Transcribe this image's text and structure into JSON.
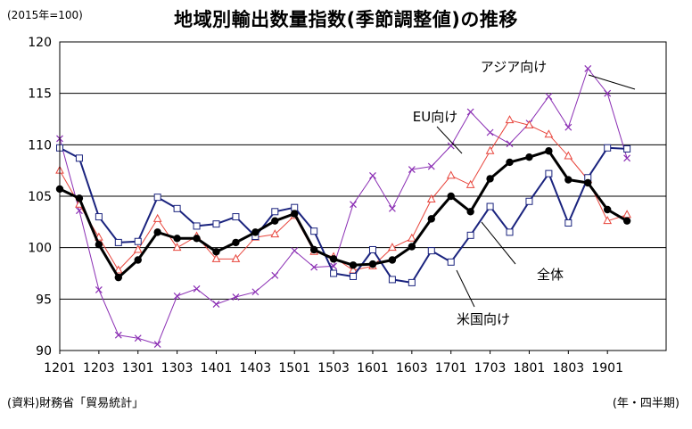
{
  "header": {
    "unit_label": "(2015年=100)",
    "title": "地域別輸出数量指数(季節調整値)の推移"
  },
  "footer": {
    "source": "(資料)財務省「貿易統計」",
    "period_note": "(年・四半期)"
  },
  "chart_data": {
    "type": "line",
    "title": "地域別輸出数量指数(季節調整値)の推移",
    "ylim": [
      90,
      120
    ],
    "yticks": [
      90,
      95,
      100,
      105,
      110,
      115,
      120
    ],
    "grid": "horizontal",
    "x": [
      "2012Q1",
      "2012Q2",
      "2012Q3",
      "2012Q4",
      "2013Q1",
      "2013Q2",
      "2013Q3",
      "2013Q4",
      "2014Q1",
      "2014Q2",
      "2014Q3",
      "2014Q4",
      "2015Q1",
      "2015Q2",
      "2015Q3",
      "2015Q4",
      "2016Q1",
      "2016Q2",
      "2016Q3",
      "2016Q4",
      "2017Q1",
      "2017Q2",
      "2017Q3",
      "2017Q4",
      "2018Q1",
      "2018Q2",
      "2018Q3",
      "2018Q4",
      "2019Q1",
      "2019Q2",
      "2019Q3"
    ],
    "xtick_labels": [
      "1201",
      "1203",
      "1301",
      "1303",
      "1401",
      "1403",
      "1501",
      "1503",
      "1601",
      "1603",
      "1701",
      "1703",
      "1801",
      "1803",
      "1901"
    ],
    "series": [
      {
        "name": "全体",
        "color": "#000000",
        "marker": "circle",
        "values": [
          105.7,
          104.8,
          100.3,
          97.1,
          98.8,
          101.5,
          100.9,
          100.9,
          99.6,
          100.5,
          101.5,
          102.6,
          103.3,
          99.8,
          98.9,
          98.3,
          98.4,
          98.8,
          100.1,
          102.8,
          105.0,
          103.5,
          106.7,
          108.3,
          108.8,
          109.4,
          106.6,
          106.3,
          103.7,
          102.6,
          null
        ]
      },
      {
        "name": "米国向け",
        "color": "#1a237e",
        "marker": "square",
        "values": [
          109.7,
          108.7,
          103.0,
          100.5,
          100.6,
          104.9,
          103.8,
          102.1,
          102.3,
          103.0,
          101.1,
          103.5,
          103.9,
          101.6,
          97.5,
          97.2,
          99.8,
          96.9,
          96.6,
          99.7,
          98.6,
          101.2,
          104.0,
          101.5,
          104.5,
          107.2,
          102.4,
          106.8,
          109.7,
          109.6,
          null
        ]
      },
      {
        "name": "EU向け",
        "color": "#e8453c",
        "marker": "triangle",
        "values": [
          107.5,
          104.2,
          101.0,
          97.8,
          99.8,
          102.8,
          100.0,
          101.1,
          98.9,
          98.9,
          101.0,
          101.3,
          103.1,
          99.6,
          99.1,
          97.8,
          98.2,
          100.0,
          100.9,
          104.7,
          107.0,
          106.1,
          109.4,
          112.4,
          111.9,
          111.0,
          108.9,
          106.6,
          102.6,
          103.2,
          null
        ]
      },
      {
        "name": "アジア向け",
        "color": "#8b2fb4",
        "marker": "x",
        "values": [
          110.6,
          103.6,
          95.9,
          91.5,
          91.2,
          90.6,
          95.3,
          96.0,
          94.5,
          95.2,
          95.7,
          97.3,
          99.7,
          98.1,
          98.2,
          104.2,
          107.0,
          103.8,
          107.6,
          107.9,
          109.9,
          113.2,
          111.2,
          110.1,
          112.1,
          114.7,
          111.7,
          117.4,
          115.0,
          108.7,
          null
        ]
      }
    ],
    "annotations": [
      "アジア向け",
      "EU向け",
      "全体",
      "米国向け"
    ]
  }
}
